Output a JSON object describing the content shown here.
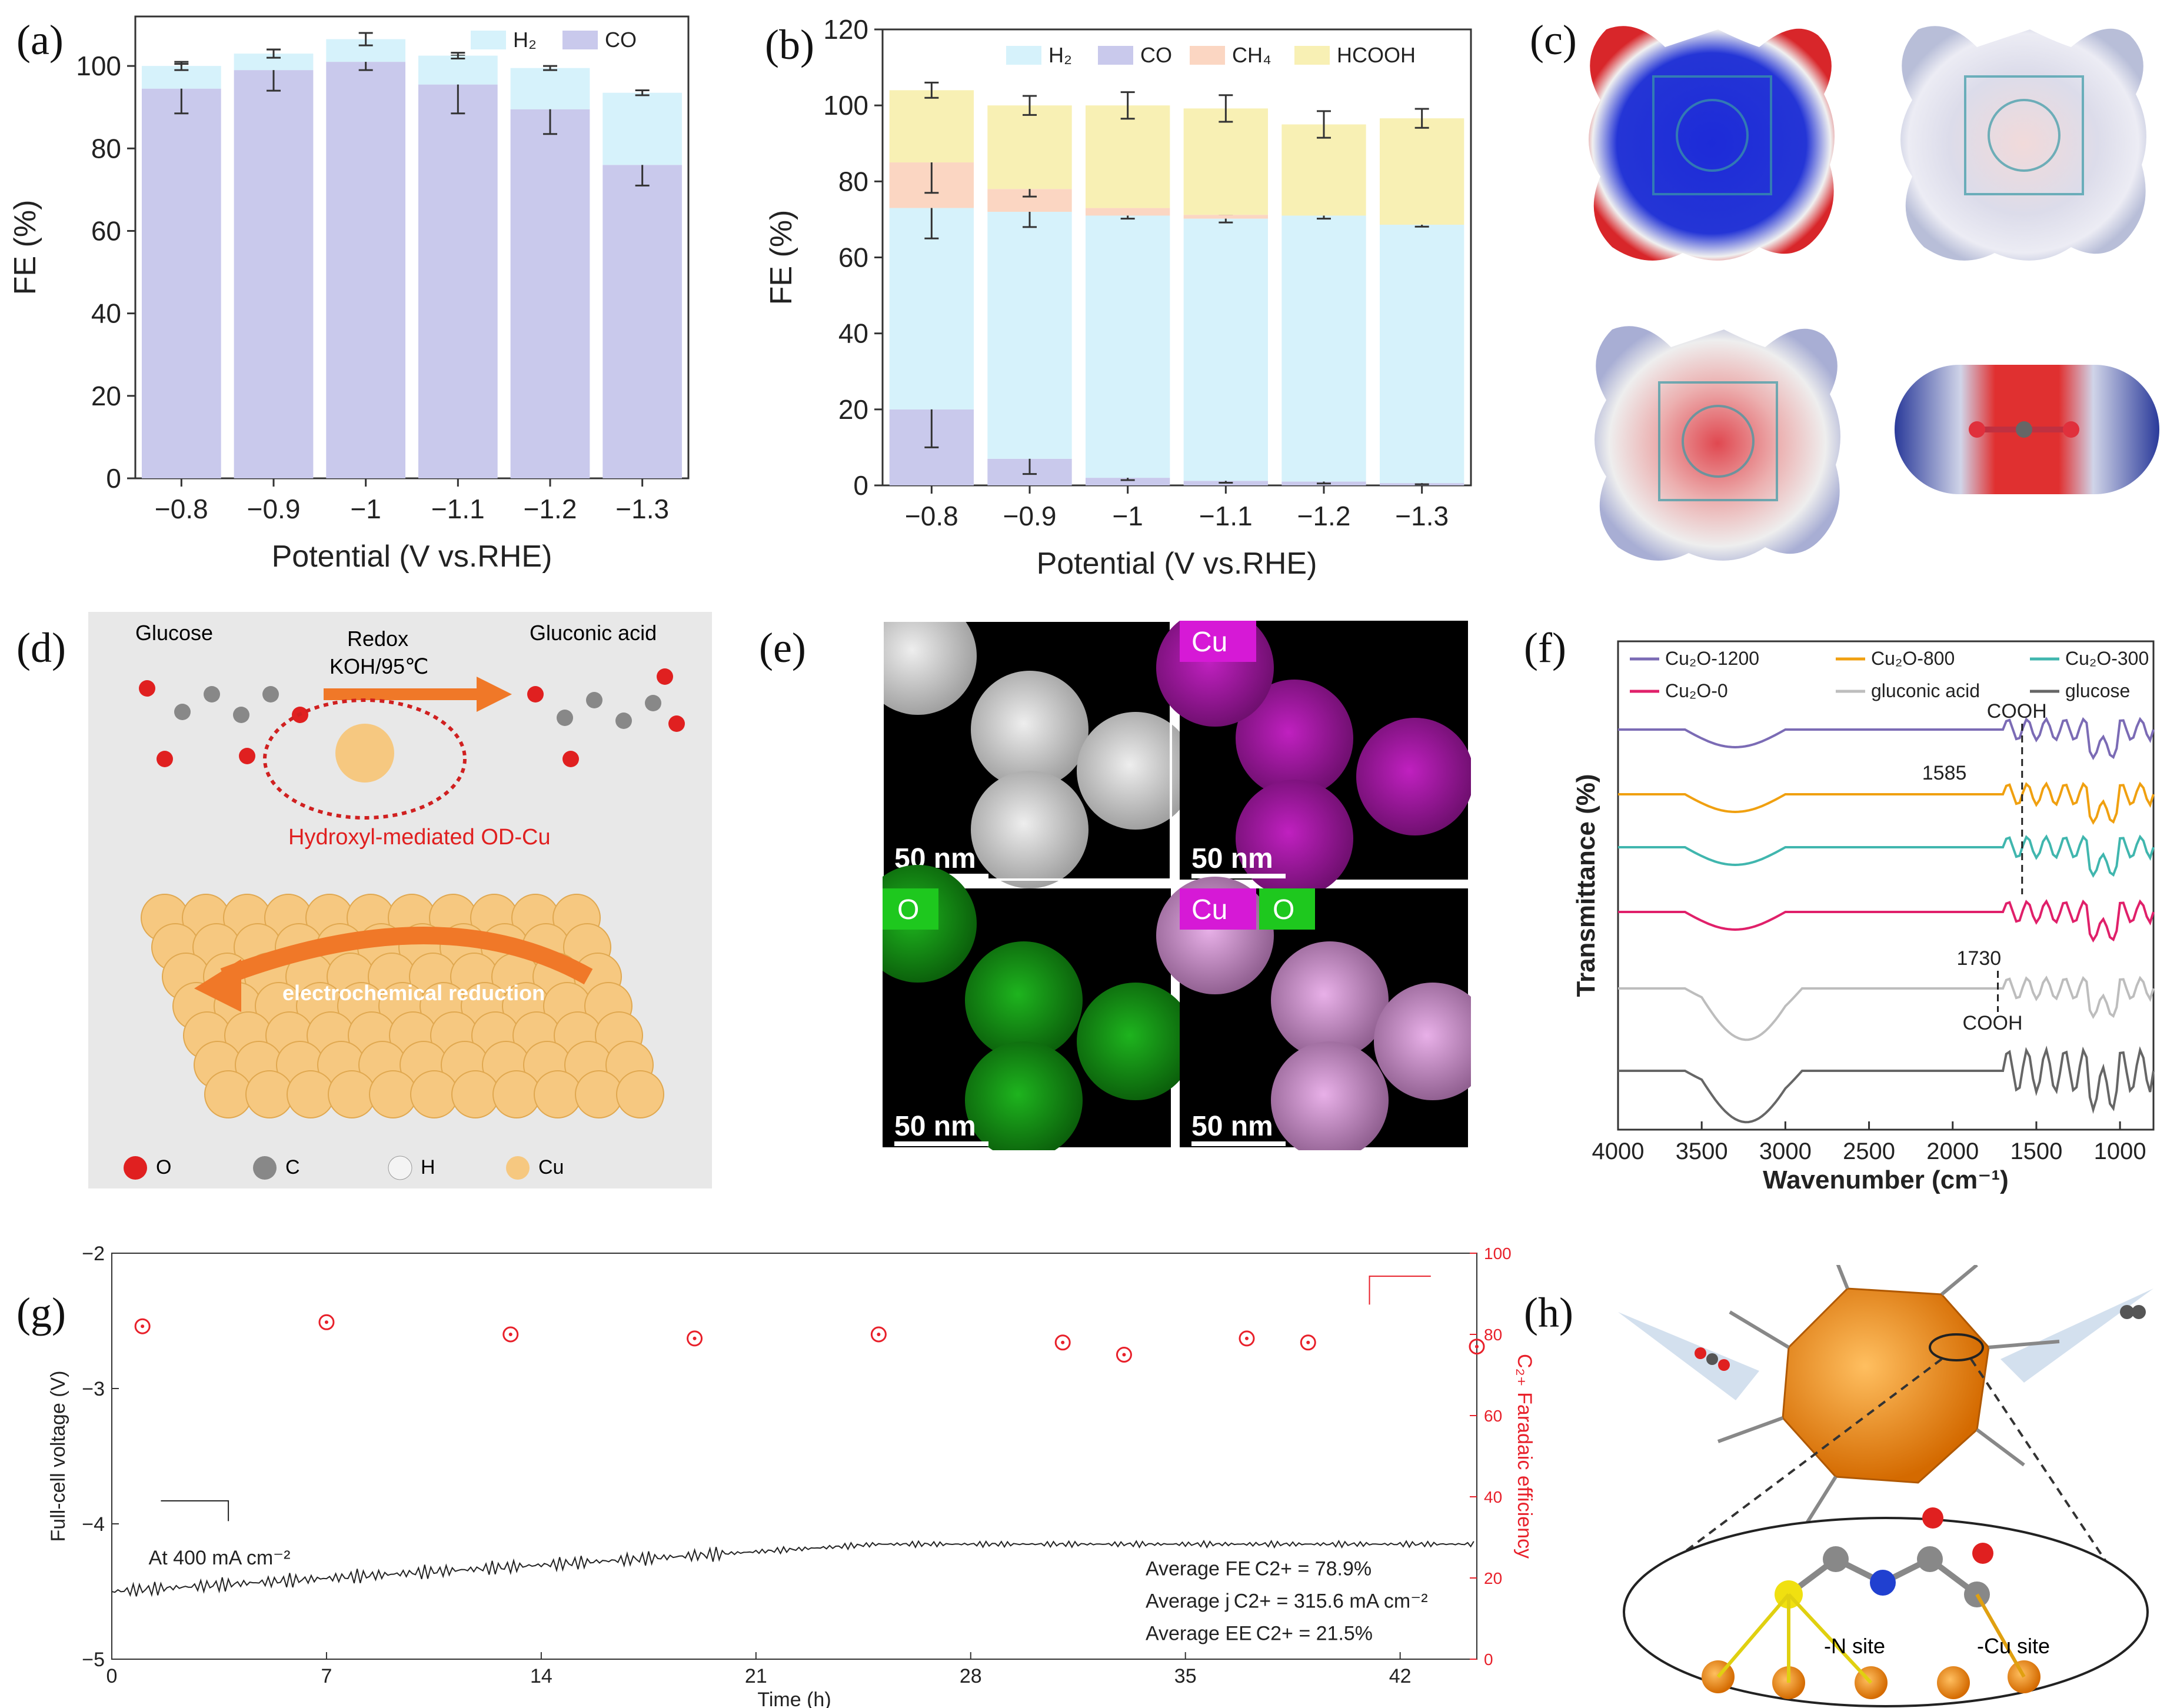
{
  "panel_labels": {
    "a": "(a)",
    "b": "(b)",
    "c": "(c)",
    "d": "(d)",
    "e": "(e)",
    "f": "(f)",
    "g": "(g)",
    "h": "(h)"
  },
  "colors": {
    "h2": "#d6f2fb",
    "co": "#c9c9ec",
    "ch4": "#fbd6c2",
    "hcooh": "#f8f0b4",
    "cu_map": "#d619d6",
    "o_map": "#1ec81e",
    "fe_red": "#e8202a"
  },
  "chart_data": [
    {
      "id": "a",
      "type": "bar",
      "stacked": true,
      "categories": [
        "−0.8",
        "−0.9",
        "−1",
        "−1.1",
        "−1.2",
        "−1.3"
      ],
      "series": [
        {
          "name": "CO",
          "values": [
            94.5,
            99,
            101,
            95.5,
            89.5,
            76
          ],
          "errors": [
            6,
            5,
            2,
            7,
            6,
            5
          ]
        },
        {
          "name": "H2",
          "values": [
            5.5,
            4,
            5.5,
            7,
            10,
            17.5
          ],
          "errors": [
            1,
            1,
            1.5,
            0.7,
            0.5,
            0.6
          ]
        }
      ],
      "legend": [
        "H₂",
        "CO"
      ],
      "xlabel": "Potential (V vs.RHE)",
      "ylabel": "FE (%)",
      "ylim": [
        0,
        112
      ],
      "yticks": [
        "0",
        "20",
        "40",
        "60",
        "80",
        "100"
      ]
    },
    {
      "id": "b",
      "type": "bar",
      "stacked": true,
      "categories": [
        "−0.8",
        "−0.9",
        "−1",
        "−1.1",
        "−1.2",
        "−1.3"
      ],
      "series": [
        {
          "name": "CO",
          "values": [
            20,
            7,
            2,
            1.2,
            1,
            0.6
          ],
          "errors": [
            10,
            4,
            0.6,
            0.5,
            0.5,
            0.3
          ]
        },
        {
          "name": "H2",
          "values": [
            53,
            65,
            69,
            69,
            70,
            68
          ],
          "errors": [
            8,
            4,
            0.8,
            1,
            0.8,
            0.5
          ]
        },
        {
          "name": "CH4",
          "values": [
            12,
            6,
            2,
            1,
            0,
            0
          ],
          "errors": [
            8,
            2,
            0,
            0,
            0,
            0
          ]
        },
        {
          "name": "HCOOH",
          "values": [
            19,
            22,
            27,
            28,
            24,
            28
          ],
          "errors": [
            2,
            2.5,
            3.5,
            3.5,
            3.5,
            2.5
          ]
        }
      ],
      "legend": [
        "H₂",
        "CO",
        "CH₄",
        "HCOOH"
      ],
      "xlabel": "Potential (V vs.RHE)",
      "ylabel": "FE (%)",
      "ylim": [
        0,
        120
      ],
      "yticks": [
        "0",
        "20",
        "40",
        "60",
        "80",
        "100",
        "120"
      ]
    },
    {
      "id": "f",
      "type": "line",
      "xlabel": "Wavenumber (cm⁻¹)",
      "ylabel": "Transmittance (%)",
      "xticks": [
        "4000",
        "3500",
        "3000",
        "2500",
        "2000",
        "1500",
        "1000"
      ],
      "xlim": [
        4000,
        800
      ],
      "series": [
        {
          "name": "Cu₂O-1200",
          "color": "#7b6bb5"
        },
        {
          "name": "Cu₂O-800",
          "color": "#f0a010"
        },
        {
          "name": "Cu₂O-300",
          "color": "#40b6ae"
        },
        {
          "name": "Cu₂O-0",
          "color": "#e0206a"
        },
        {
          "name": "gluconic acid",
          "color": "#bdbdbd"
        },
        {
          "name": "glucose",
          "color": "#666666"
        }
      ],
      "annotations": [
        "COOH",
        "1585",
        "1730",
        "COOH"
      ]
    },
    {
      "id": "g",
      "type": "line",
      "xlabel": "Time (h)",
      "ylabel": "Full-cell voltage (V)",
      "ylabel_right": "C₂₊ Faradaic efficiency",
      "xlim": [
        0,
        44.5
      ],
      "ylim": [
        -5,
        -2
      ],
      "ylim_right": [
        0,
        100
      ],
      "xticks": [
        "0",
        "7",
        "14",
        "21",
        "28",
        "35",
        "42"
      ],
      "yticks": [
        "−5",
        "−4",
        "−3",
        "−2"
      ],
      "yticks_right": [
        "0",
        "20",
        "40",
        "60",
        "80",
        "100"
      ],
      "fe_points": {
        "x": [
          1,
          7,
          13,
          19,
          25,
          31,
          33,
          37,
          39,
          44.5
        ],
        "y": [
          82,
          83,
          80,
          79,
          80,
          78,
          75,
          79,
          78,
          77
        ]
      },
      "voltage_start": -4.5,
      "voltage_end": -4.15,
      "note": "At 400 mA cm⁻²",
      "stats": [
        "Average FE C2+ = 78.9%",
        "Average j C2+ = 315.6 mA cm⁻²",
        "Average EE C2+ = 21.5%"
      ]
    }
  ],
  "panel_d": {
    "glucose": "Glucose",
    "gluconic": "Gluconic acid",
    "redox": "Redox",
    "condition": "KOH/95℃",
    "od_cu": "Hydroxyl-mediated OD-Cu",
    "reduction": "electrochemical reduction",
    "legend": [
      "O",
      "C",
      "H",
      "Cu"
    ]
  },
  "panel_e": {
    "scale": "50 nm",
    "cu": "Cu",
    "o": "O"
  },
  "panel_h": {
    "n_site": "-N site",
    "cu_site": "-Cu site"
  }
}
